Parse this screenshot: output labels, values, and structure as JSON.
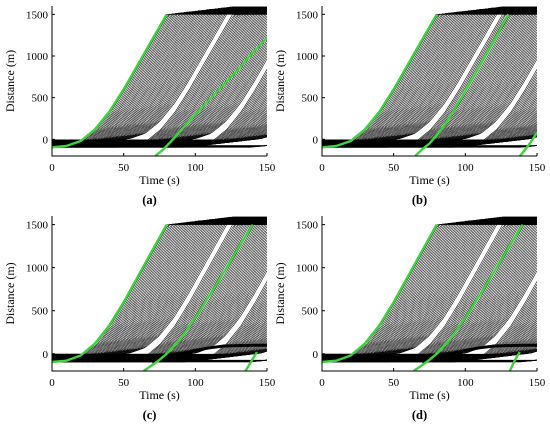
{
  "colors": {
    "trajectory": "#000000",
    "highlight": "#3fd23f",
    "background": "#ffffff"
  },
  "chart_data": [
    {
      "type": "line",
      "panel_label": "(a)",
      "xlabel": "Time (s)",
      "ylabel": "Distance (m)",
      "xlim": [
        0,
        150
      ],
      "ylim": [
        -200,
        1600
      ],
      "xticks": [
        0,
        50,
        100,
        150
      ],
      "yticks": [
        0,
        500,
        1000,
        1500
      ],
      "trajectories": {
        "count": 130,
        "initial_position_range": [
          -100,
          0
        ],
        "color": "black"
      },
      "stopped_segments": [],
      "highlighted_series": [
        {
          "x": [
            0,
            10,
            20,
            30,
            40,
            50,
            60,
            66,
            70,
            80
          ],
          "y": [
            -95,
            -80,
            -20,
            120,
            330,
            600,
            900,
            1080,
            1200,
            1500
          ]
        },
        {
          "x": [
            72,
            77,
            80,
            85,
            90,
            100,
            110,
            120,
            130,
            140,
            150
          ],
          "y": [
            -200,
            -130,
            -80,
            10,
            110,
            300,
            480,
            660,
            840,
            1040,
            1220
          ]
        }
      ]
    },
    {
      "type": "line",
      "panel_label": "(b)",
      "xlabel": "Time (s)",
      "ylabel": "Distance (m)",
      "xlim": [
        0,
        150
      ],
      "ylim": [
        -200,
        1600
      ],
      "xticks": [
        0,
        50,
        100,
        150
      ],
      "yticks": [
        0,
        500,
        1000,
        1500
      ],
      "trajectories": {
        "count": 130,
        "initial_position_range": [
          -100,
          0
        ],
        "color": "black"
      },
      "stopped_segments": [],
      "highlighted_series": [
        {
          "x": [
            0,
            10,
            20,
            30,
            40,
            50,
            60,
            66,
            70,
            80
          ],
          "y": [
            -95,
            -80,
            -20,
            120,
            330,
            600,
            900,
            1080,
            1200,
            1500
          ]
        },
        {
          "x": [
            65,
            70,
            75,
            80,
            85,
            90,
            100,
            110,
            120,
            130
          ],
          "y": [
            -200,
            -120,
            -50,
            50,
            160,
            290,
            580,
            880,
            1180,
            1500
          ]
        },
        {
          "x": [
            138,
            140,
            145,
            150
          ],
          "y": [
            -200,
            -160,
            -50,
            80
          ]
        }
      ]
    },
    {
      "type": "line",
      "panel_label": "(c)",
      "xlabel": "Time (s)",
      "ylabel": "Distance (m)",
      "xlim": [
        0,
        150
      ],
      "ylim": [
        -200,
        1600
      ],
      "xticks": [
        0,
        50,
        100,
        150
      ],
      "yticks": [
        0,
        500,
        1000,
        1500
      ],
      "trajectories": {
        "count": 130,
        "initial_position_range": [
          -100,
          0
        ],
        "color": "black"
      },
      "stopped_segments": [
        {
          "x": [
            70,
            80,
            90,
            100,
            110,
            120,
            130,
            140,
            150
          ],
          "y": [
            -95,
            -50,
            0,
            40,
            70,
            90,
            95,
            100,
            100
          ]
        }
      ],
      "highlighted_series": [
        {
          "x": [
            0,
            10,
            20,
            30,
            40,
            50,
            60,
            66,
            70,
            80
          ],
          "y": [
            -95,
            -80,
            -20,
            120,
            330,
            600,
            900,
            1080,
            1200,
            1500
          ]
        },
        {
          "x": [
            64,
            70,
            75,
            80,
            90,
            100,
            110,
            120,
            130,
            140
          ],
          "y": [
            -200,
            -130,
            -70,
            0,
            180,
            420,
            680,
            950,
            1230,
            1500
          ]
        },
        {
          "x": [
            135,
            140,
            143
          ],
          "y": [
            -200,
            -60,
            20
          ]
        }
      ]
    },
    {
      "type": "line",
      "panel_label": "(d)",
      "xlabel": "Time (s)",
      "ylabel": "Distance (m)",
      "xlim": [
        0,
        150
      ],
      "ylim": [
        -200,
        1600
      ],
      "xticks": [
        0,
        50,
        100,
        150
      ],
      "yticks": [
        0,
        500,
        1000,
        1500
      ],
      "trajectories": {
        "count": 130,
        "initial_position_range": [
          -100,
          0
        ],
        "color": "black"
      },
      "stopped_segments": [
        {
          "x": [
            70,
            80,
            90,
            100,
            110,
            120,
            130,
            140,
            150
          ],
          "y": [
            -95,
            -50,
            0,
            40,
            70,
            90,
            95,
            100,
            100
          ]
        }
      ],
      "highlighted_series": [
        {
          "x": [
            0,
            10,
            20,
            30,
            40,
            50,
            60,
            66,
            70,
            80
          ],
          "y": [
            -95,
            -80,
            -20,
            120,
            330,
            600,
            900,
            1080,
            1200,
            1500
          ]
        },
        {
          "x": [
            64,
            70,
            75,
            80,
            90,
            100,
            110,
            120,
            130,
            140
          ],
          "y": [
            -200,
            -130,
            -70,
            0,
            180,
            420,
            680,
            950,
            1230,
            1500
          ]
        },
        {
          "x": [
            131,
            135,
            138
          ],
          "y": [
            -200,
            -60,
            20
          ]
        }
      ]
    }
  ]
}
